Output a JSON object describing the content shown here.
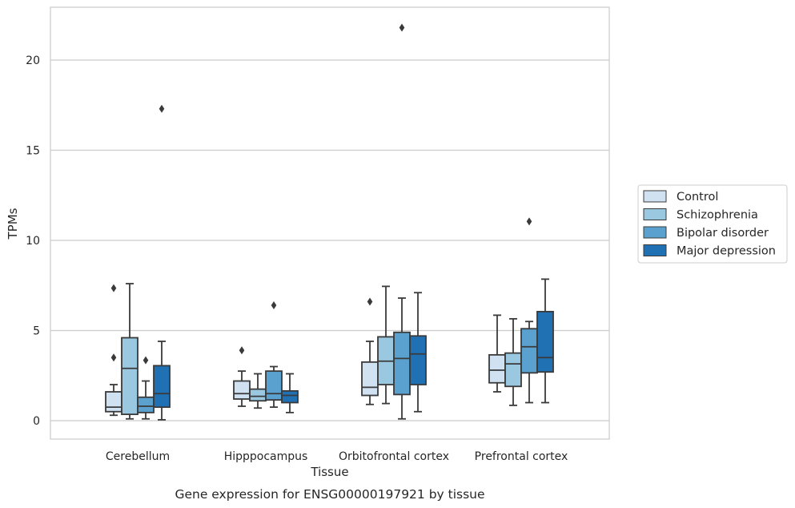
{
  "chart_data": {
    "type": "box",
    "caption": "Gene expression for ENSG00000197921 by tissue",
    "xlabel": "Tissue",
    "ylabel": "TPMs",
    "ylim": [
      -1,
      23
    ],
    "yticks": [
      0,
      5,
      10,
      15,
      20
    ],
    "grid": "horizontal",
    "legend_position": "right",
    "categories": [
      "Cerebellum",
      "Hipppocampus",
      "Orbitofrontal cortex",
      "Prefrontal cortex"
    ],
    "series": [
      {
        "name": "Control",
        "color": "#d0e1f2",
        "boxes": [
          {
            "whisker_low": 0.3,
            "q1": 0.5,
            "median": 0.75,
            "q3": 1.6,
            "whisker_high": 2.0,
            "outliers": [
              3.5,
              7.35
            ]
          },
          {
            "whisker_low": 0.8,
            "q1": 1.2,
            "median": 1.5,
            "q3": 2.2,
            "whisker_high": 2.75,
            "outliers": [
              3.9
            ]
          },
          {
            "whisker_low": 0.9,
            "q1": 1.4,
            "median": 1.85,
            "q3": 3.25,
            "whisker_high": 4.4,
            "outliers": [
              6.6
            ]
          },
          {
            "whisker_low": 1.6,
            "q1": 2.1,
            "median": 2.8,
            "q3": 3.65,
            "whisker_high": 5.85,
            "outliers": []
          }
        ]
      },
      {
        "name": "Schizophrenia",
        "color": "#9ac8e0",
        "boxes": [
          {
            "whisker_low": 0.1,
            "q1": 0.35,
            "median": 2.9,
            "q3": 4.6,
            "whisker_high": 7.6,
            "outliers": []
          },
          {
            "whisker_low": 0.7,
            "q1": 1.1,
            "median": 1.35,
            "q3": 1.75,
            "whisker_high": 2.6,
            "outliers": []
          },
          {
            "whisker_low": 0.95,
            "q1": 2.0,
            "median": 3.3,
            "q3": 4.65,
            "whisker_high": 7.45,
            "outliers": []
          },
          {
            "whisker_low": 0.85,
            "q1": 1.9,
            "median": 3.15,
            "q3": 3.75,
            "whisker_high": 5.65,
            "outliers": []
          }
        ]
      },
      {
        "name": "Bipolar disorder",
        "color": "#5aa1cf",
        "boxes": [
          {
            "whisker_low": 0.1,
            "q1": 0.45,
            "median": 0.8,
            "q3": 1.3,
            "whisker_high": 2.2,
            "outliers": [
              3.35
            ]
          },
          {
            "whisker_low": 0.75,
            "q1": 1.15,
            "median": 1.5,
            "q3": 2.75,
            "whisker_high": 3.0,
            "outliers": [
              6.4
            ]
          },
          {
            "whisker_low": 0.1,
            "q1": 1.45,
            "median": 3.45,
            "q3": 4.9,
            "whisker_high": 6.8,
            "outliers": [
              21.8
            ]
          },
          {
            "whisker_low": 1.0,
            "q1": 2.65,
            "median": 4.1,
            "q3": 5.1,
            "whisker_high": 5.5,
            "outliers": [
              11.05
            ]
          }
        ]
      },
      {
        "name": "Major depression",
        "color": "#2070b4",
        "boxes": [
          {
            "whisker_low": 0.05,
            "q1": 0.75,
            "median": 1.5,
            "q3": 3.05,
            "whisker_high": 4.4,
            "outliers": [
              17.3
            ]
          },
          {
            "whisker_low": 0.45,
            "q1": 1.0,
            "median": 1.4,
            "q3": 1.65,
            "whisker_high": 2.6,
            "outliers": []
          },
          {
            "whisker_low": 0.5,
            "q1": 2.0,
            "median": 3.7,
            "q3": 4.7,
            "whisker_high": 7.1,
            "outliers": []
          },
          {
            "whisker_low": 1.0,
            "q1": 2.7,
            "median": 3.5,
            "q3": 6.05,
            "whisker_high": 7.85,
            "outliers": []
          }
        ]
      }
    ]
  }
}
